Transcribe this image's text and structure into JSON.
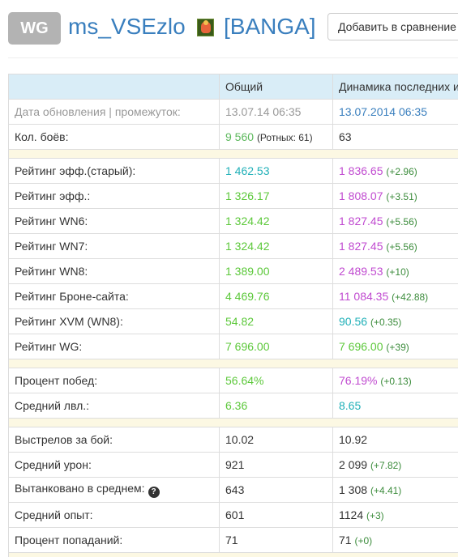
{
  "header": {
    "badge": "WG",
    "player_name": "ms_VSEzlo",
    "clan_tag": "[BANGA]",
    "compare_button": "Добавить в сравнение"
  },
  "table": {
    "columns": [
      "",
      "Общий",
      "Динамика последних и"
    ],
    "rows": {
      "update": {
        "label": "Дата обновления | промежуток:",
        "total": "13.07.14 06:35",
        "dynamic": "13.07.2014 06:35"
      },
      "battles": {
        "label": "Кол. боёв:",
        "total": "9 560",
        "total_sub": "(Ротных: 61)",
        "dynamic": "63"
      },
      "eff_old": {
        "label": "Рейтинг эфф.(старый):",
        "total": "1 462.53",
        "dynamic": "1 836.65",
        "delta": "(+2.96)"
      },
      "eff": {
        "label": "Рейтинг эфф.:",
        "total": "1 326.17",
        "dynamic": "1 808.07",
        "delta": "(+3.51)"
      },
      "wn6": {
        "label": "Рейтинг WN6:",
        "total": "1 324.42",
        "dynamic": "1 827.45",
        "delta": "(+5.56)"
      },
      "wn7": {
        "label": "Рейтинг WN7:",
        "total": "1 324.42",
        "dynamic": "1 827.45",
        "delta": "(+5.56)"
      },
      "wn8": {
        "label": "Рейтинг WN8:",
        "total": "1 389.00",
        "dynamic": "2 489.53",
        "delta": "(+10)"
      },
      "brone": {
        "label": "Рейтинг Броне-сайта:",
        "total": "4 469.76",
        "dynamic": "11 084.35",
        "delta": "(+42.88)"
      },
      "xvm": {
        "label": "Рейтинг XVM (WN8):",
        "total": "54.82",
        "dynamic": "90.56",
        "delta": "(+0.35)"
      },
      "wg": {
        "label": "Рейтинг WG:",
        "total": "7 696.00",
        "dynamic": "7 696.00",
        "delta": "(+39)"
      },
      "winrate": {
        "label": "Процент побед:",
        "total": "56.64%",
        "dynamic": "76.19%",
        "delta": "(+0.13)"
      },
      "avg_lvl": {
        "label": "Средний лвл.:",
        "total": "6.36",
        "dynamic": "8.65"
      },
      "shots": {
        "label": "Выстрелов за бой:",
        "total": "10.02",
        "dynamic": "10.92"
      },
      "damage": {
        "label": "Средний урон:",
        "total": "921",
        "dynamic": "2 099",
        "delta": "(+7.82)"
      },
      "tanked": {
        "label": "Вытанковано в среднем:",
        "help": "?",
        "total": "643",
        "dynamic": "1 308",
        "delta": "(+4.41)"
      },
      "xp": {
        "label": "Средний опыт:",
        "total": "601",
        "dynamic": "1124",
        "delta": "(+3)"
      },
      "hit": {
        "label": "Процент попаданий:",
        "total": "71",
        "dynamic": "71",
        "delta": "(+0)"
      }
    }
  }
}
